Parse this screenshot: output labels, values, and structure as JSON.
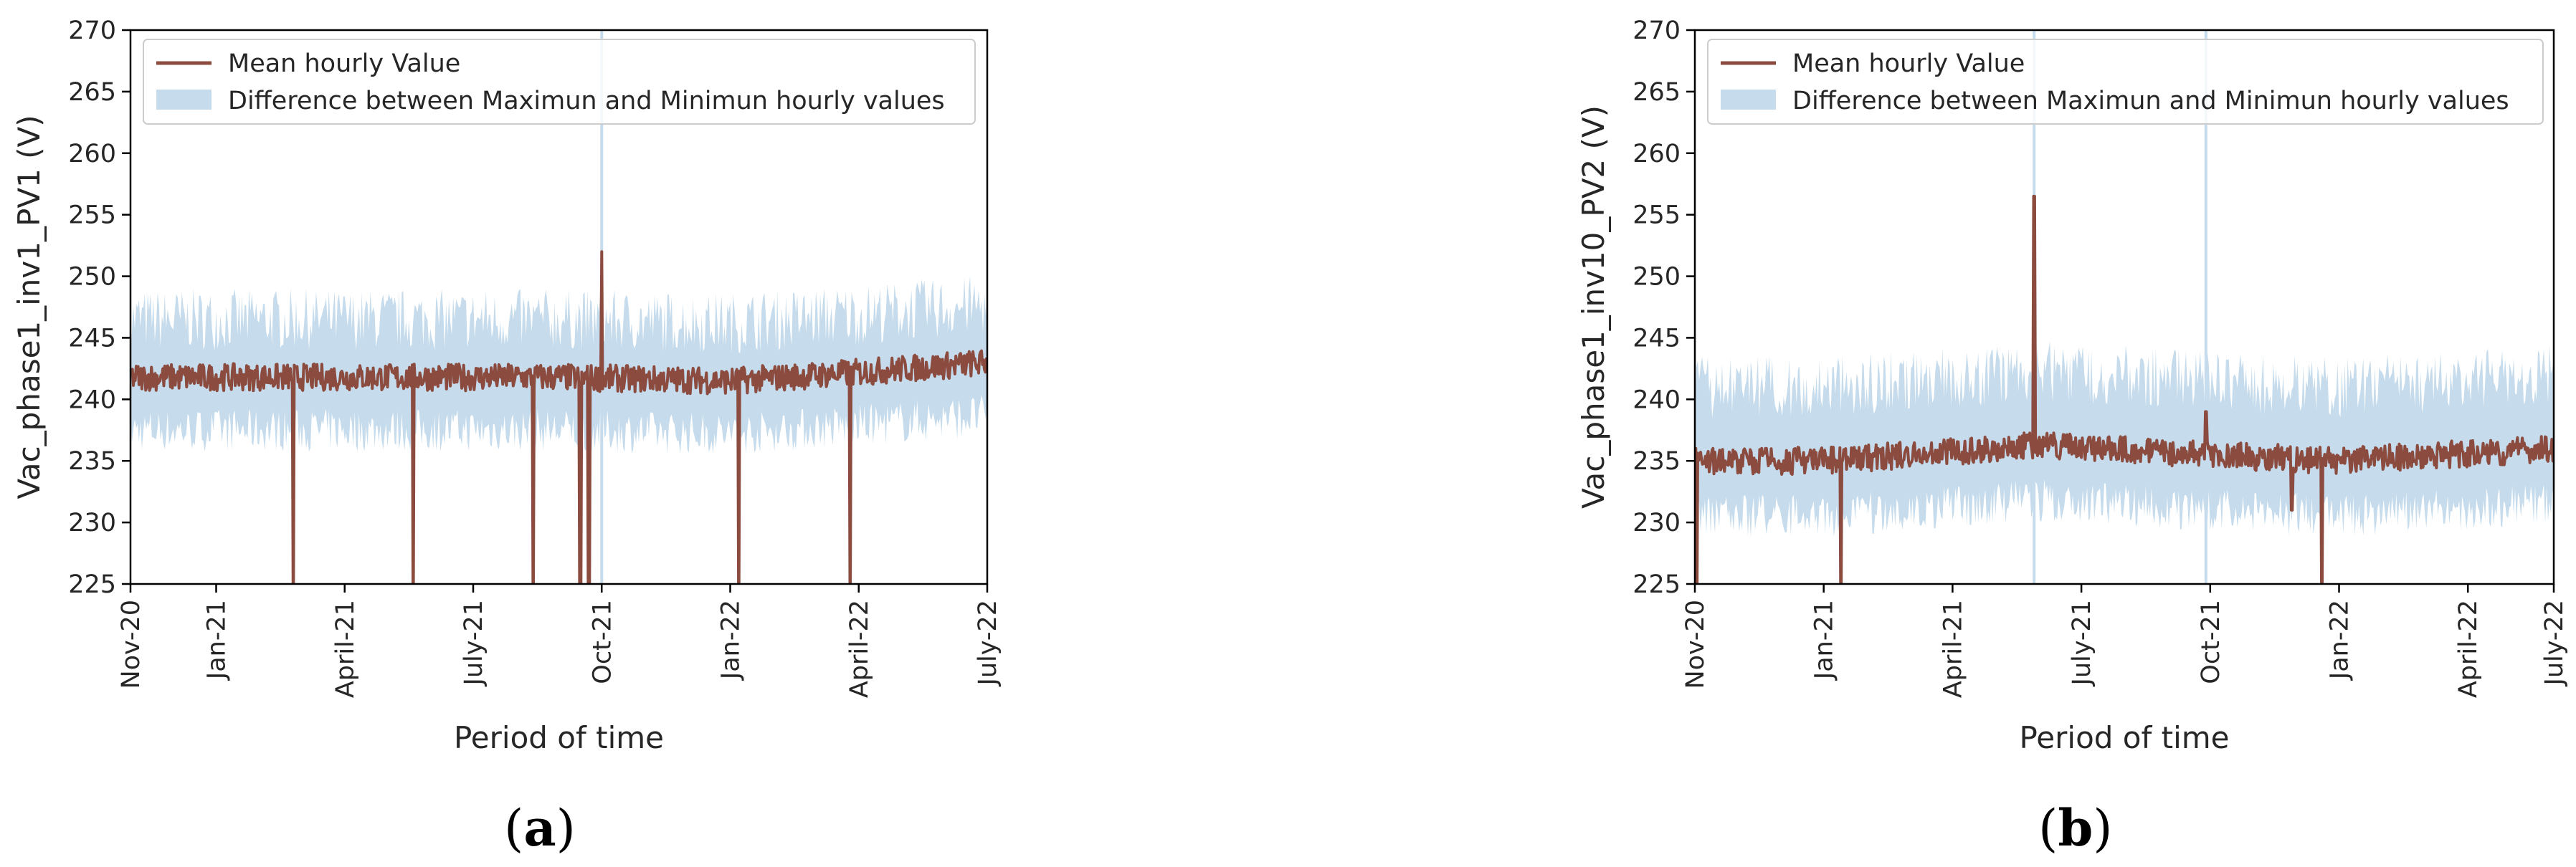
{
  "chart_data": [
    {
      "type": "line",
      "panel": "(a)",
      "caption_letter": "a",
      "xlabel": "Period of time",
      "ylabel": "Vac_phase1_inv1_PV1 (V)",
      "ylim": [
        225,
        270
      ],
      "yticks": [
        225,
        230,
        235,
        240,
        245,
        250,
        255,
        260,
        265,
        270
      ],
      "xlim": [
        0,
        20
      ],
      "xticks": [
        {
          "x": 0,
          "label": "Nov-20"
        },
        {
          "x": 2,
          "label": "Jan-21"
        },
        {
          "x": 5,
          "label": "April-21"
        },
        {
          "x": 8,
          "label": "July-21"
        },
        {
          "x": 11,
          "label": "Oct-21"
        },
        {
          "x": 14,
          "label": "Jan-22"
        },
        {
          "x": 17,
          "label": "April-22"
        },
        {
          "x": 20,
          "label": "July-22"
        }
      ],
      "legend_position": "top-left",
      "colors": {
        "mean": "#8c4b3f",
        "band": "#c6dcec"
      },
      "series": [
        {
          "name": "Mean hourly Value",
          "kind": "line",
          "baseline": 241.8,
          "trend": [
            [
              0,
              241.8
            ],
            [
              10,
              241.8
            ],
            [
              14,
              241.5
            ],
            [
              17,
              242.2
            ],
            [
              20,
              243.0
            ]
          ],
          "spikes": [
            [
              11.0,
              252.0
            ]
          ],
          "dropouts": [
            3.8,
            6.6,
            9.4,
            10.5,
            10.7,
            14.2,
            16.8
          ]
        },
        {
          "name": "Difference between Maximun and Minimun hourly values",
          "kind": "band",
          "upper": 246.5,
          "lower": 237.5
        }
      ]
    },
    {
      "type": "line",
      "panel": "(b)",
      "caption_letter": "b",
      "xlabel": "Period of time",
      "ylabel": "Vac_phase1_inv10_PV2 (V)",
      "ylim": [
        225,
        270
      ],
      "yticks": [
        225,
        230,
        235,
        240,
        245,
        250,
        255,
        260,
        265,
        270
      ],
      "xlim": [
        0,
        20
      ],
      "xticks": [
        {
          "x": 0,
          "label": "Nov-20"
        },
        {
          "x": 3,
          "label": "Jan-21"
        },
        {
          "x": 6,
          "label": "April-21"
        },
        {
          "x": 9,
          "label": "July-21"
        },
        {
          "x": 12,
          "label": "Oct-21"
        },
        {
          "x": 15,
          "label": "Jan-22"
        },
        {
          "x": 18,
          "label": "April-22"
        },
        {
          "x": 20,
          "label": "July-22"
        }
      ],
      "legend_position": "top-left",
      "colors": {
        "mean": "#8c4b3f",
        "band": "#c6dcec"
      },
      "series": [
        {
          "name": "Mean hourly Value",
          "kind": "line",
          "baseline": 235.5,
          "trend": [
            [
              0,
              235.0
            ],
            [
              3,
              235.0
            ],
            [
              8,
              236.3
            ],
            [
              12,
              235.5
            ],
            [
              15,
              235.0
            ],
            [
              20,
              236.0
            ]
          ],
          "spikes": [
            [
              7.9,
              256.5
            ],
            [
              11.9,
              239.0
            ]
          ],
          "dropouts": [
            0.05,
            3.4,
            14.6
          ],
          "dips": [
            [
              13.9,
              231.0
            ]
          ]
        },
        {
          "name": "Difference between Maximun and Minimun hourly values",
          "kind": "band",
          "upper": 241.5,
          "lower": 231.0
        }
      ]
    }
  ]
}
